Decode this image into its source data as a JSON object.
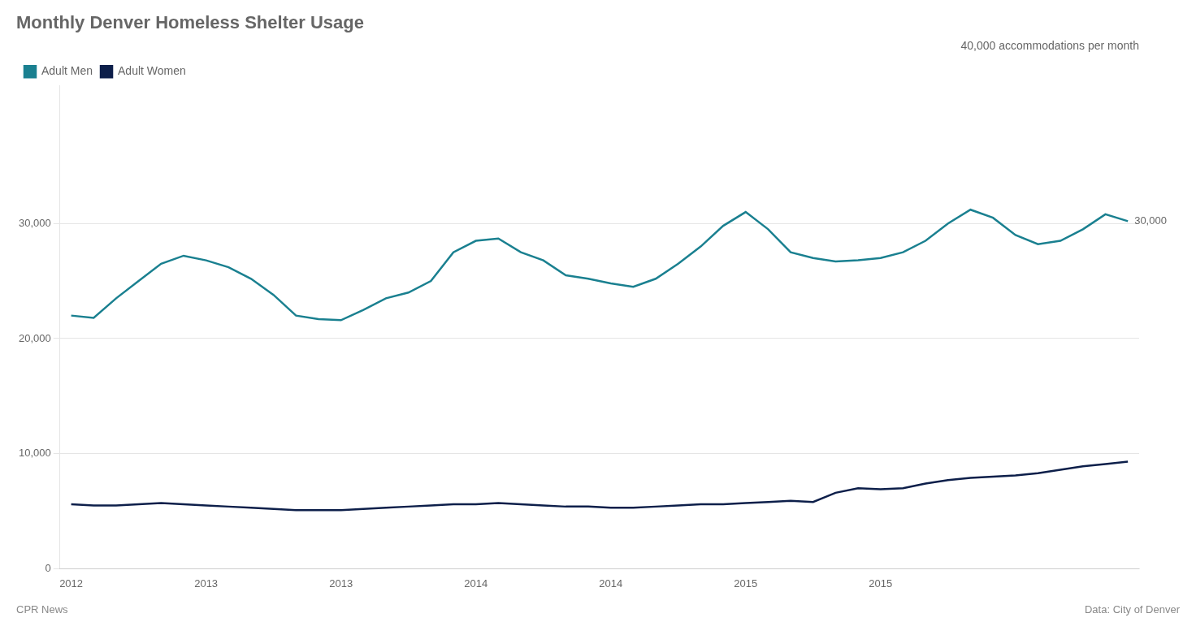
{
  "chart_data": {
    "type": "line",
    "title": "Monthly Denver Homeless Shelter Usage",
    "subtitle": "40,000 accommodations per month",
    "footer": [
      "CPR News",
      "Data: City of Denver"
    ],
    "categories": [
      "2012",
      null,
      null,
      null,
      null,
      null,
      "2013",
      null,
      null,
      null,
      null,
      null,
      "2013",
      null,
      null,
      null,
      null,
      null,
      "2014",
      null,
      null,
      null,
      null,
      null,
      "2014",
      null,
      null,
      null,
      null,
      null,
      "2015",
      null,
      null,
      null,
      null,
      null,
      "2015",
      null,
      null,
      null,
      null,
      null,
      null,
      null,
      null,
      null,
      null,
      null
    ],
    "series": [
      {
        "name": "Adult Men",
        "color": "#1a8090",
        "values": [
          22000,
          21800,
          23500,
          25000,
          26500,
          27200,
          26800,
          26200,
          25200,
          23800,
          22000,
          21700,
          21600,
          22500,
          23500,
          24000,
          25000,
          27500,
          28500,
          28700,
          27500,
          26800,
          25500,
          25200,
          24800,
          24500,
          25200,
          26500,
          28000,
          29800,
          31000,
          29500,
          27500,
          27000,
          26700,
          26800,
          27000,
          27500,
          28500,
          30000,
          31200,
          30500,
          29000,
          28200,
          28500,
          29500,
          30800,
          30200
        ]
      },
      {
        "name": "Adult Women",
        "color": "#0d1f4a",
        "values": [
          5600,
          5500,
          5500,
          5600,
          5700,
          5600,
          5500,
          5400,
          5300,
          5200,
          5100,
          5100,
          5100,
          5200,
          5300,
          5400,
          5500,
          5600,
          5600,
          5700,
          5600,
          5500,
          5400,
          5400,
          5300,
          5300,
          5400,
          5500,
          5600,
          5600,
          5700,
          5800,
          5900,
          5800,
          6600,
          7000,
          6900,
          7000,
          7400,
          7700,
          7900,
          8000,
          8100,
          8300,
          8600,
          8900,
          9100,
          9300
        ]
      }
    ],
    "ylim": [
      0,
      42000
    ],
    "yticks": [
      0,
      {
        "value": 10000,
        "label": "10,000"
      },
      {
        "value": 20000,
        "label": "20,000"
      },
      {
        "value": 30000,
        "label": "30,000"
      }
    ],
    "grid": true,
    "legend": "top-left",
    "annotations": [
      {
        "text": "30,000",
        "series": "Adult Men"
      }
    ]
  }
}
